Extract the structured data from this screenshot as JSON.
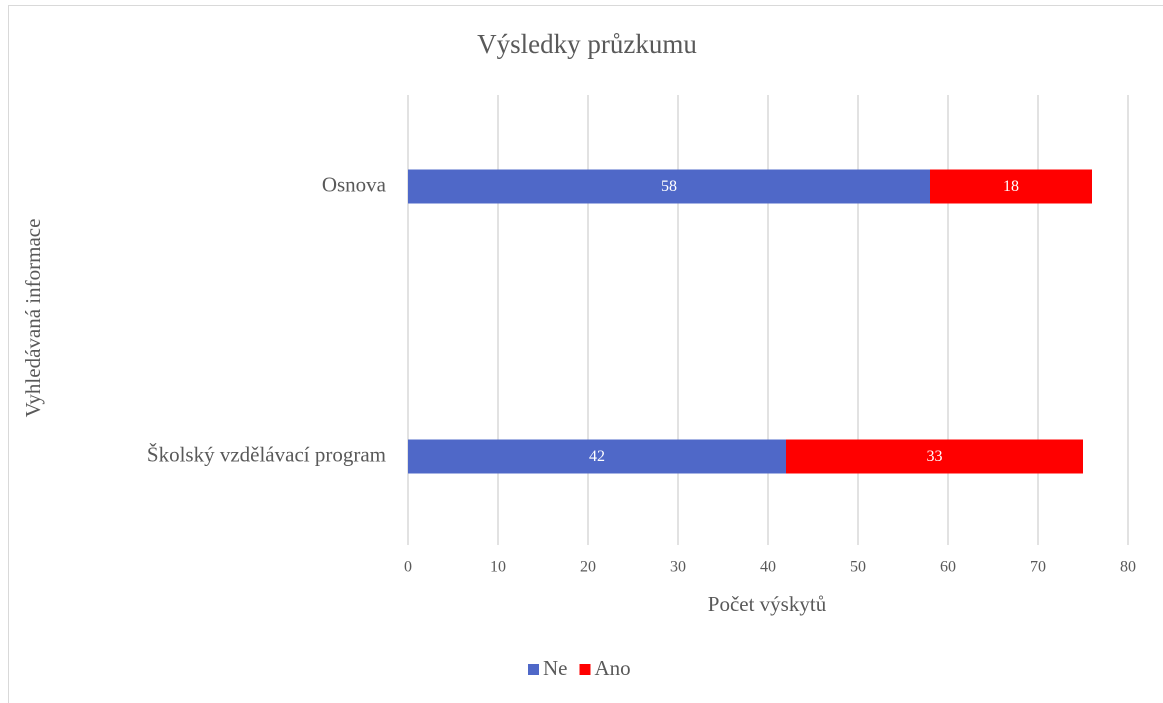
{
  "chart_data": {
    "type": "bar",
    "orientation": "horizontal",
    "stacked": true,
    "title": "Výsledky  průzkumu",
    "x_label": "Počet výskytů",
    "y_label": "Vyhledávaná informace",
    "categories": [
      "Osnova",
      "Školský vzdělávací program"
    ],
    "series": [
      {
        "name": "Ne",
        "color": "#4f68c8",
        "values": [
          58,
          42
        ]
      },
      {
        "name": "Ano",
        "color": "#ff0000",
        "values": [
          18,
          33
        ]
      }
    ],
    "xlim": [
      0,
      80
    ],
    "xticks": [
      0,
      10,
      20,
      30,
      40,
      50,
      60,
      70,
      80
    ],
    "grid": true,
    "legend": "bottom"
  }
}
